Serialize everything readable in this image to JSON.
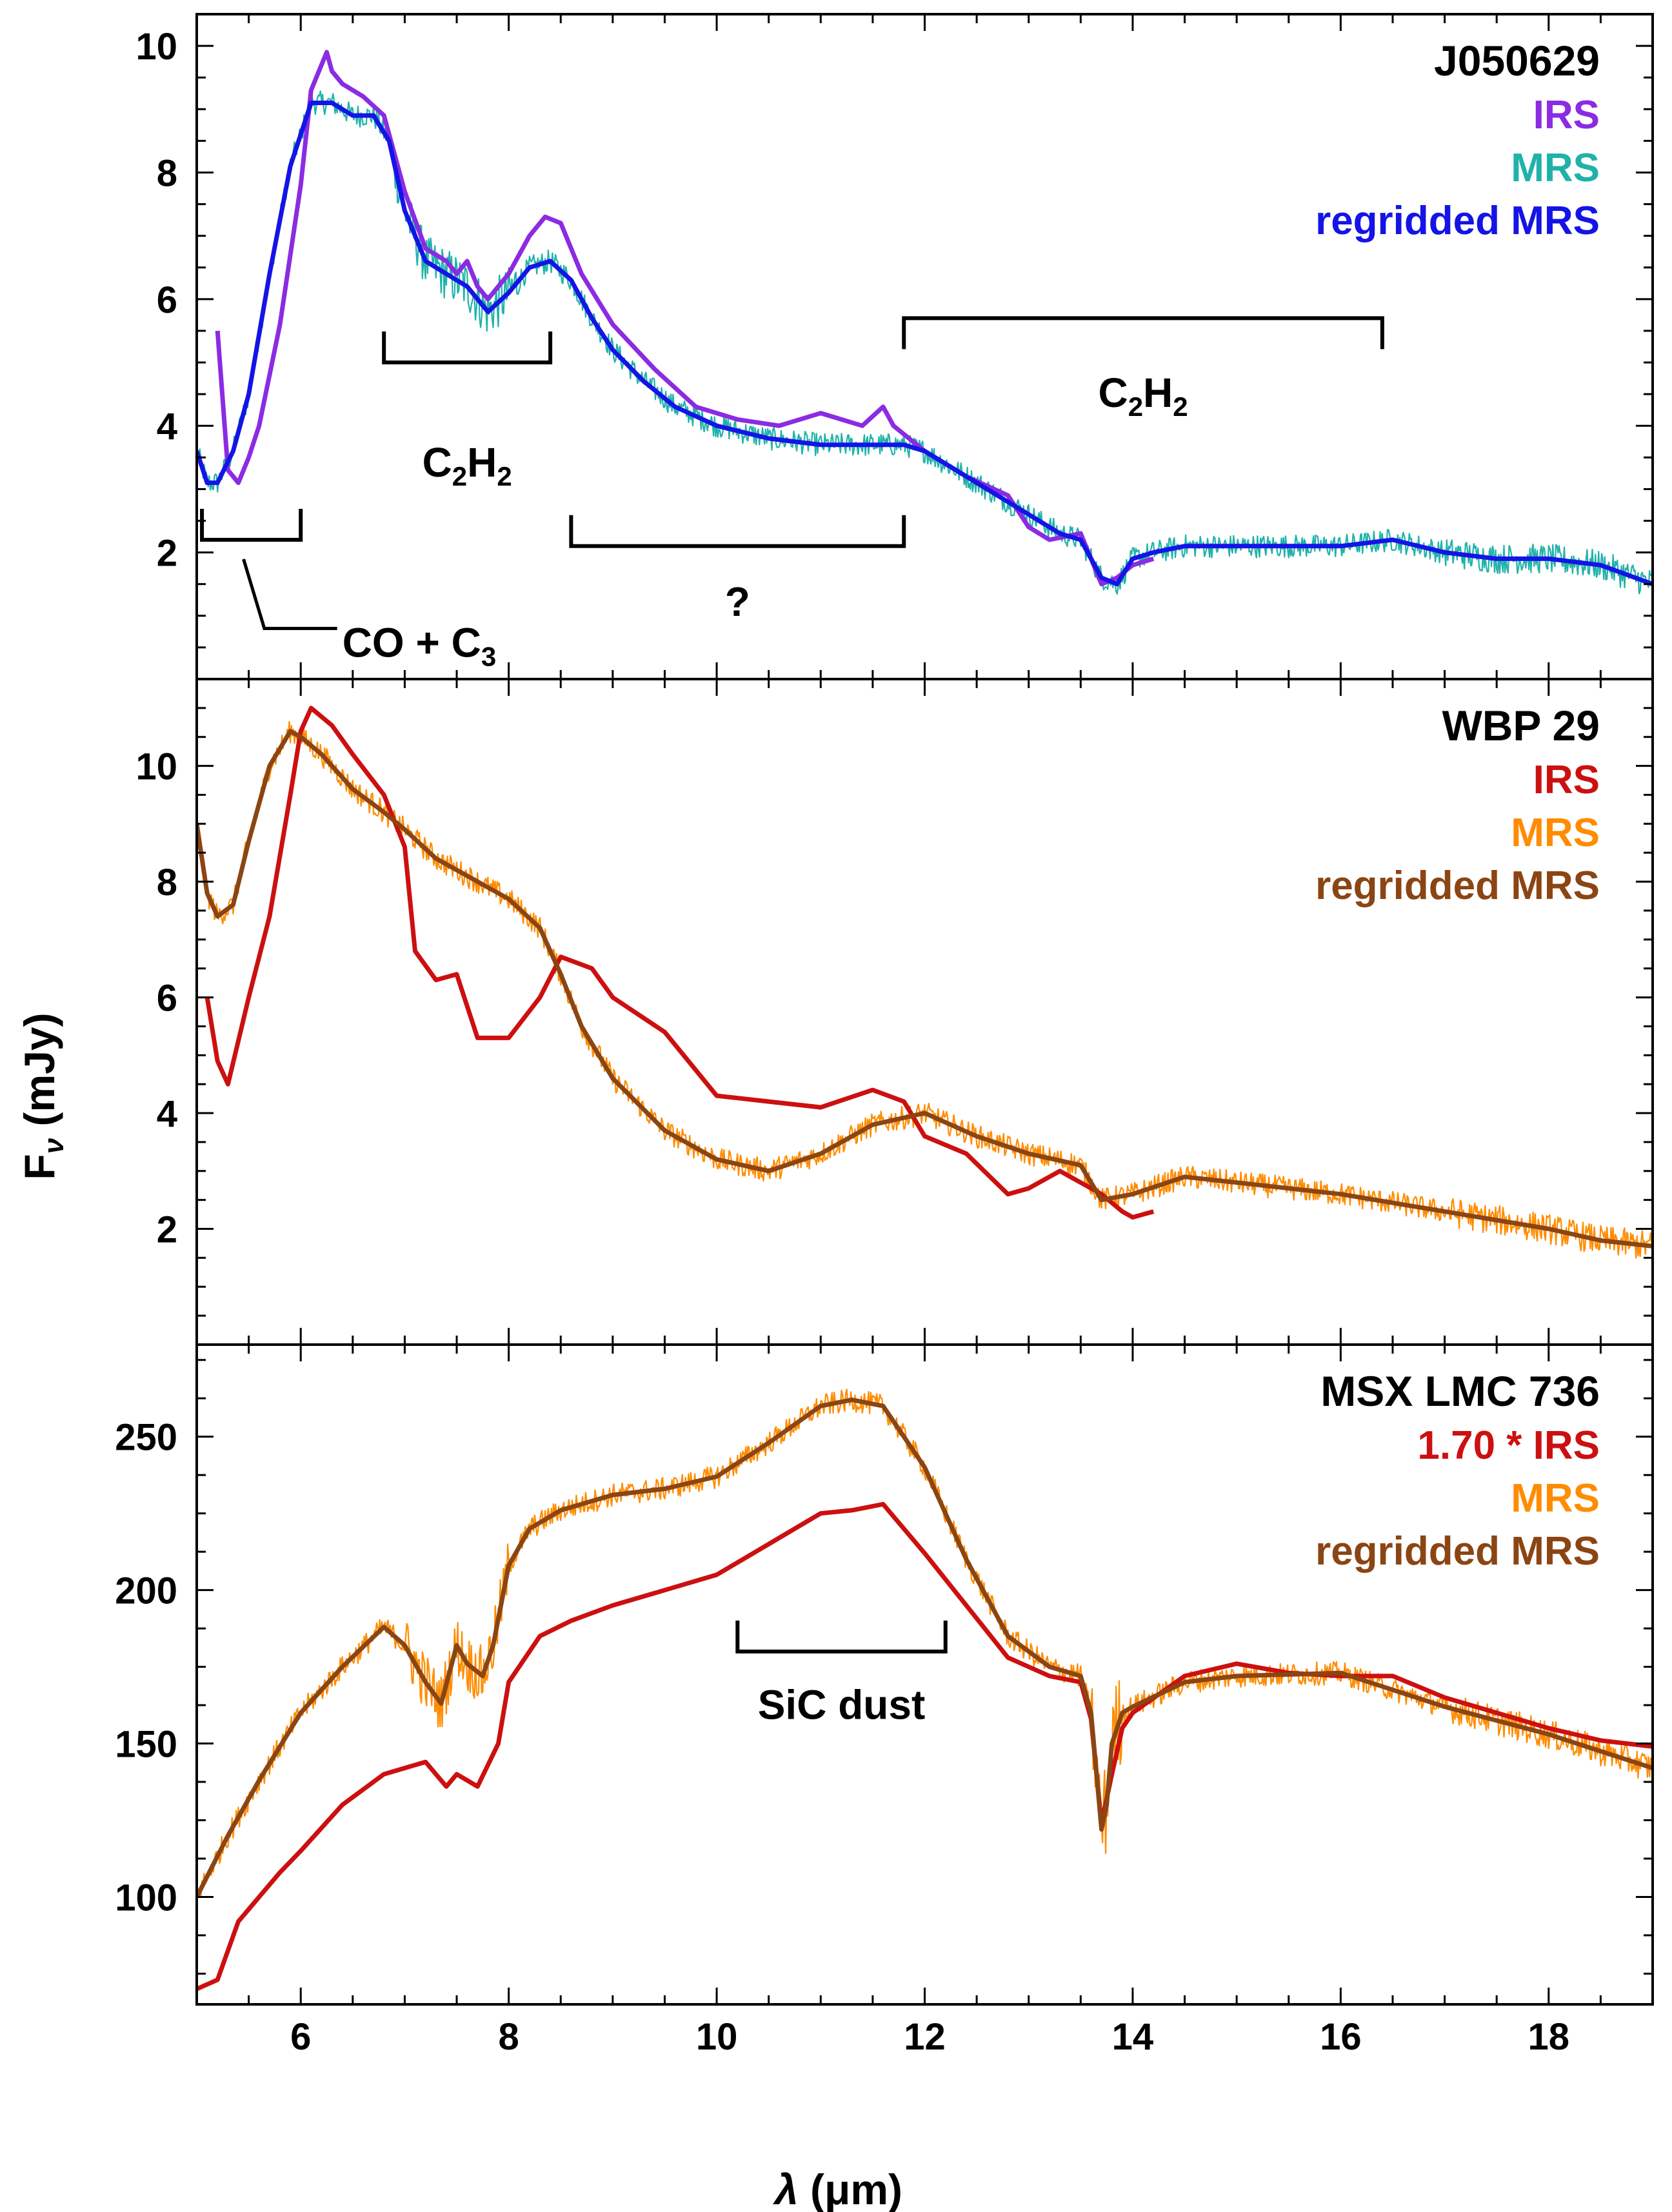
{
  "figure": {
    "xlabel_symbol": "λ",
    "xlabel_unit": "(μm)",
    "ylabel_main": "F",
    "ylabel_sub": "ν",
    "ylabel_unit": "(mJy)"
  },
  "chart_data": [
    {
      "type": "line",
      "title": "J050629",
      "xlim": [
        5,
        19
      ],
      "ylim": [
        0,
        10.5
      ],
      "yticks": [
        2,
        4,
        6,
        8,
        10
      ],
      "xticks": [
        6,
        8,
        10,
        12,
        14,
        16,
        18
      ],
      "grid": false,
      "legend_position": "top-right",
      "series": [
        {
          "name": "MRS",
          "color": "#20b2aa",
          "noisy": true,
          "x": [
            5.0,
            5.1,
            5.2,
            5.35,
            5.5,
            5.7,
            5.9,
            6.1,
            6.3,
            6.5,
            6.7,
            6.85,
            7.0,
            7.2,
            7.4,
            7.6,
            7.8,
            8.0,
            8.2,
            8.4,
            8.6,
            8.8,
            9.0,
            9.3,
            9.6,
            10.0,
            10.5,
            11.0,
            11.5,
            11.8,
            12.0,
            12.3,
            12.7,
            13.0,
            13.3,
            13.5,
            13.7,
            13.85,
            14.0,
            14.2,
            14.5,
            15.0,
            15.5,
            16.0,
            16.5,
            17.0,
            17.5,
            18.0,
            18.5,
            19.0
          ],
          "y": [
            3.6,
            3.1,
            3.1,
            3.6,
            4.5,
            6.4,
            8.1,
            9.1,
            9.1,
            8.9,
            8.9,
            8.5,
            7.4,
            6.6,
            6.4,
            6.2,
            5.8,
            6.1,
            6.5,
            6.6,
            6.3,
            5.7,
            5.2,
            4.7,
            4.3,
            4.0,
            3.8,
            3.7,
            3.7,
            3.7,
            3.6,
            3.3,
            2.9,
            2.6,
            2.3,
            2.2,
            1.6,
            1.5,
            1.9,
            2.0,
            2.1,
            2.1,
            2.1,
            2.1,
            2.2,
            2.0,
            1.9,
            1.9,
            1.8,
            1.5
          ]
        },
        {
          "name": "IRS",
          "color": "#8b2be2",
          "noisy": false,
          "x": [
            5.2,
            5.3,
            5.4,
            5.5,
            5.6,
            5.8,
            6.0,
            6.1,
            6.25,
            6.3,
            6.4,
            6.6,
            6.8,
            7.0,
            7.2,
            7.4,
            7.5,
            7.6,
            7.7,
            7.8,
            8.0,
            8.2,
            8.35,
            8.5,
            8.7,
            9.0,
            9.4,
            9.8,
            10.2,
            10.6,
            11.0,
            11.4,
            11.6,
            11.7,
            12.0,
            12.4,
            12.8,
            13.0,
            13.2,
            13.5,
            13.7,
            13.85,
            14.0,
            14.2
          ],
          "y": [
            5.5,
            3.3,
            3.1,
            3.5,
            4.0,
            5.6,
            7.8,
            9.3,
            9.9,
            9.6,
            9.4,
            9.2,
            8.9,
            7.7,
            6.8,
            6.6,
            6.4,
            6.6,
            6.2,
            6.0,
            6.4,
            7.0,
            7.3,
            7.2,
            6.4,
            5.6,
            4.9,
            4.3,
            4.1,
            4.0,
            4.2,
            4.0,
            4.3,
            4.0,
            3.6,
            3.2,
            2.9,
            2.4,
            2.2,
            2.3,
            1.5,
            1.6,
            1.8,
            1.9
          ]
        },
        {
          "name": "regridded MRS",
          "color": "#1414e6",
          "noisy": false,
          "x": [
            5.0,
            5.1,
            5.2,
            5.35,
            5.5,
            5.7,
            5.9,
            6.1,
            6.3,
            6.5,
            6.7,
            6.85,
            7.0,
            7.2,
            7.4,
            7.6,
            7.8,
            8.0,
            8.2,
            8.4,
            8.6,
            8.8,
            9.0,
            9.3,
            9.6,
            10.0,
            10.5,
            11.0,
            11.5,
            11.8,
            12.0,
            12.3,
            12.7,
            13.0,
            13.3,
            13.5,
            13.7,
            13.85,
            14.0,
            14.2,
            14.5,
            15.0,
            15.5,
            16.0,
            16.5,
            17.0,
            17.5,
            18.0,
            18.5,
            19.0
          ],
          "y": [
            3.6,
            3.1,
            3.1,
            3.6,
            4.5,
            6.4,
            8.1,
            9.1,
            9.1,
            8.9,
            8.9,
            8.5,
            7.4,
            6.6,
            6.4,
            6.2,
            5.8,
            6.1,
            6.5,
            6.6,
            6.3,
            5.7,
            5.2,
            4.7,
            4.3,
            4.0,
            3.8,
            3.7,
            3.7,
            3.7,
            3.6,
            3.3,
            2.9,
            2.6,
            2.3,
            2.2,
            1.6,
            1.5,
            1.9,
            2.0,
            2.1,
            2.1,
            2.1,
            2.1,
            2.2,
            2.0,
            1.9,
            1.9,
            1.8,
            1.5
          ]
        }
      ],
      "annotations": [
        {
          "text": "C",
          "sub": "2",
          "text2": "H",
          "sub2": "2"
        },
        {
          "text": "C",
          "sub": "2",
          "text2": "H",
          "sub2": "2"
        },
        {
          "text": "?"
        },
        {
          "text": "CO + C",
          "sub": "3"
        }
      ]
    },
    {
      "type": "line",
      "title": "WBP 29",
      "xlim": [
        5,
        19
      ],
      "ylim": [
        0,
        11.5
      ],
      "yticks": [
        2,
        4,
        6,
        8,
        10
      ],
      "xticks": [
        6,
        8,
        10,
        12,
        14,
        16,
        18
      ],
      "grid": false,
      "legend_position": "top-right",
      "series": [
        {
          "name": "MRS",
          "color": "#ff8c00",
          "noisy": true,
          "x": [
            5.0,
            5.1,
            5.2,
            5.35,
            5.5,
            5.7,
            5.9,
            6.0,
            6.2,
            6.5,
            6.8,
            7.0,
            7.3,
            7.6,
            8.0,
            8.3,
            8.5,
            8.7,
            9.0,
            9.5,
            10.0,
            10.5,
            11.0,
            11.5,
            12.0,
            12.5,
            13.0,
            13.5,
            13.7,
            14.0,
            14.5,
            15.0,
            16.0,
            17.0,
            18.0,
            18.5,
            19.0
          ],
          "y": [
            9.0,
            7.8,
            7.4,
            7.6,
            8.7,
            10.0,
            10.6,
            10.5,
            10.2,
            9.6,
            9.2,
            8.9,
            8.4,
            8.1,
            7.7,
            7.2,
            6.4,
            5.5,
            4.6,
            3.7,
            3.2,
            3.0,
            3.3,
            3.8,
            4.0,
            3.6,
            3.3,
            3.1,
            2.5,
            2.6,
            2.9,
            2.8,
            2.6,
            2.3,
            2.0,
            1.8,
            1.7
          ]
        },
        {
          "name": "IRS",
          "color": "#cc1010",
          "noisy": false,
          "x": [
            5.1,
            5.2,
            5.3,
            5.5,
            5.7,
            5.9,
            6.0,
            6.1,
            6.3,
            6.5,
            6.8,
            7.0,
            7.1,
            7.3,
            7.5,
            7.7,
            8.0,
            8.3,
            8.5,
            8.8,
            9.0,
            9.5,
            10.0,
            10.5,
            11.0,
            11.5,
            11.8,
            12.0,
            12.4,
            12.8,
            13.0,
            13.3,
            13.5,
            13.7,
            13.9,
            14.0,
            14.2
          ],
          "y": [
            6.0,
            4.9,
            4.5,
            6.0,
            7.4,
            9.5,
            10.6,
            11.0,
            10.7,
            10.2,
            9.5,
            8.6,
            6.8,
            6.3,
            6.4,
            5.3,
            5.3,
            6.0,
            6.7,
            6.5,
            6.0,
            5.4,
            4.3,
            4.2,
            4.1,
            4.4,
            4.2,
            3.6,
            3.3,
            2.6,
            2.7,
            3.0,
            2.8,
            2.6,
            2.3,
            2.2,
            2.3
          ]
        },
        {
          "name": "regridded MRS",
          "color": "#8b4513",
          "noisy": false,
          "x": [
            5.0,
            5.1,
            5.2,
            5.35,
            5.5,
            5.7,
            5.9,
            6.0,
            6.2,
            6.5,
            6.8,
            7.0,
            7.3,
            7.6,
            8.0,
            8.3,
            8.5,
            8.7,
            9.0,
            9.5,
            10.0,
            10.5,
            11.0,
            11.5,
            12.0,
            12.5,
            13.0,
            13.5,
            13.7,
            14.0,
            14.5,
            15.0,
            16.0,
            17.0,
            18.0,
            18.5,
            19.0
          ],
          "y": [
            9.0,
            7.8,
            7.4,
            7.6,
            8.7,
            10.0,
            10.6,
            10.5,
            10.2,
            9.6,
            9.2,
            8.9,
            8.4,
            8.1,
            7.7,
            7.2,
            6.4,
            5.5,
            4.6,
            3.7,
            3.2,
            3.0,
            3.3,
            3.8,
            4.0,
            3.6,
            3.3,
            3.1,
            2.5,
            2.6,
            2.9,
            2.8,
            2.6,
            2.3,
            2.0,
            1.8,
            1.7
          ]
        }
      ],
      "annotations": []
    },
    {
      "type": "line",
      "title": "MSX LMC 736",
      "xlim": [
        5,
        19
      ],
      "ylim": [
        65,
        280
      ],
      "yticks": [
        100,
        150,
        200,
        250
      ],
      "xticks": [
        6,
        8,
        10,
        12,
        14,
        16,
        18
      ],
      "grid": false,
      "legend_position": "top-right",
      "series": [
        {
          "name": "MRS",
          "color": "#ff8c00",
          "noisy": true,
          "x": [
            5.0,
            5.3,
            5.6,
            6.0,
            6.4,
            6.8,
            7.0,
            7.2,
            7.35,
            7.5,
            7.6,
            7.75,
            7.85,
            8.0,
            8.2,
            8.5,
            9.0,
            9.5,
            10.0,
            10.5,
            11.0,
            11.3,
            11.6,
            12.0,
            12.4,
            12.8,
            13.2,
            13.5,
            13.6,
            13.7,
            13.75,
            13.8,
            13.9,
            14.0,
            14.5,
            15.0,
            16.0,
            17.0,
            18.0,
            19.0
          ],
          "y": [
            100,
            120,
            138,
            160,
            175,
            188,
            182,
            170,
            163,
            182,
            176,
            172,
            182,
            208,
            220,
            226,
            231,
            233,
            237,
            248,
            260,
            262,
            260,
            240,
            210,
            185,
            175,
            172,
            160,
            122,
            130,
            150,
            160,
            162,
            170,
            172,
            173,
            162,
            153,
            142
          ]
        },
        {
          "name": "1.70 * IRS",
          "color": "#cc1010",
          "noisy": false,
          "x": [
            5.0,
            5.2,
            5.4,
            5.6,
            5.8,
            6.0,
            6.4,
            6.8,
            7.0,
            7.2,
            7.4,
            7.5,
            7.7,
            7.9,
            8.0,
            8.3,
            8.6,
            9.0,
            9.5,
            10.0,
            10.5,
            11.0,
            11.3,
            11.6,
            12.0,
            12.4,
            12.8,
            13.2,
            13.5,
            13.6,
            13.7,
            13.8,
            13.9,
            14.0,
            14.5,
            15.0,
            15.5,
            16.0,
            16.5,
            17.0,
            17.5,
            18.0,
            18.5,
            19.0
          ],
          "y": [
            70,
            73,
            92,
            100,
            108,
            115,
            130,
            140,
            142,
            144,
            136,
            140,
            136,
            150,
            170,
            185,
            190,
            195,
            200,
            205,
            215,
            225,
            226,
            228,
            212,
            195,
            178,
            172,
            170,
            158,
            124,
            140,
            155,
            160,
            172,
            176,
            173,
            172,
            172,
            165,
            160,
            155,
            151,
            149
          ]
        },
        {
          "name": "regridded MRS",
          "color": "#8b4513",
          "noisy": false,
          "x": [
            5.0,
            5.3,
            5.6,
            6.0,
            6.4,
            6.8,
            7.0,
            7.2,
            7.35,
            7.5,
            7.6,
            7.75,
            7.85,
            8.0,
            8.2,
            8.5,
            9.0,
            9.5,
            10.0,
            10.5,
            11.0,
            11.3,
            11.6,
            12.0,
            12.4,
            12.8,
            13.2,
            13.5,
            13.6,
            13.7,
            13.75,
            13.8,
            13.9,
            14.0,
            14.5,
            15.0,
            16.0,
            17.0,
            18.0,
            19.0
          ],
          "y": [
            100,
            120,
            138,
            160,
            175,
            188,
            182,
            170,
            163,
            182,
            176,
            172,
            182,
            208,
            220,
            226,
            231,
            233,
            237,
            248,
            260,
            262,
            260,
            240,
            210,
            185,
            175,
            172,
            160,
            122,
            130,
            150,
            160,
            162,
            170,
            172,
            173,
            162,
            153,
            142
          ]
        }
      ],
      "annotations": [
        {
          "text": "SiC dust"
        }
      ]
    }
  ]
}
